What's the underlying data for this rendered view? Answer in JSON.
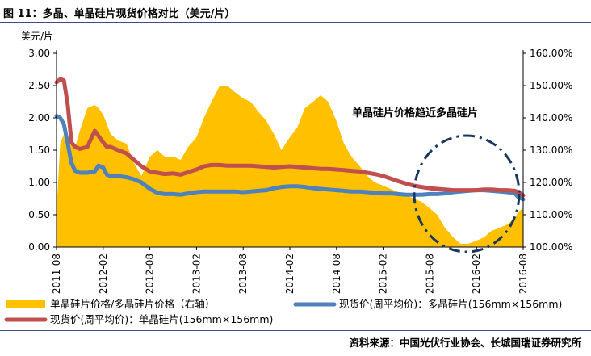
{
  "header": {
    "title": "图 11：多晶、单晶硅片现货价格对比（美元/片）",
    "unit_left": "美元/片",
    "source": "资料来源：中国光伏行业协会、长城国瑞证券研究所"
  },
  "annotation": "单晶硅片价格趋近多晶硅片",
  "colors": {
    "area": "#FFC000",
    "poly_line": "#4F81BD",
    "mono_line": "#C0504D",
    "ellipse": "#17375E",
    "rule": "#3A4A8A"
  },
  "chart_data": {
    "type": "line",
    "title": "图 11：多晶、单晶硅片现货价格对比（美元/片）",
    "ylabel": "美元/片",
    "x_ticks": [
      "2011-08",
      "2012-02",
      "2012-08",
      "2013-02",
      "2013-08",
      "2014-02",
      "2014-08",
      "2015-02",
      "2015-08",
      "2016-02",
      "2016-08"
    ],
    "y_left_ticks": [
      "3.00",
      "2.50",
      "2.00",
      "1.50",
      "1.00",
      "0.50",
      "0.00"
    ],
    "y_right_ticks": [
      "160.00%",
      "150.00%",
      "140.00%",
      "130.00%",
      "120.00%",
      "110.00%",
      "100.00%"
    ],
    "ylim_left": [
      0,
      3
    ],
    "ylim_right": [
      1.0,
      1.6
    ],
    "grid": false,
    "legend_position": "bottom",
    "x": [
      2011.67,
      2011.71,
      2011.75,
      2011.79,
      2011.83,
      2011.87,
      2011.92,
      2012.0,
      2012.08,
      2012.12,
      2012.17,
      2012.21,
      2012.25,
      2012.33,
      2012.42,
      2012.5,
      2012.58,
      2012.67,
      2012.75,
      2012.83,
      2012.92,
      2013.0,
      2013.08,
      2013.17,
      2013.25,
      2013.33,
      2013.42,
      2013.5,
      2013.58,
      2013.67,
      2013.75,
      2013.83,
      2013.92,
      2014.0,
      2014.08,
      2014.17,
      2014.25,
      2014.33,
      2014.42,
      2014.5,
      2014.58,
      2014.67,
      2014.75,
      2014.83,
      2014.92,
      2015.0,
      2015.08,
      2015.17,
      2015.25,
      2015.33,
      2015.42,
      2015.5,
      2015.58,
      2015.67,
      2015.75,
      2015.83,
      2015.92,
      2016.0,
      2016.08,
      2016.17,
      2016.25,
      2016.33,
      2016.42,
      2016.5,
      2016.58,
      2016.62,
      2016.67
    ],
    "series": [
      {
        "name": "单晶硅片价格/多晶硅片价格（右轴）",
        "axis": "right",
        "style": "area",
        "values": [
          1.11,
          1.32,
          1.35,
          1.33,
          1.32,
          1.31,
          1.36,
          1.43,
          1.44,
          1.43,
          1.41,
          1.38,
          1.35,
          1.33,
          1.32,
          1.26,
          1.22,
          1.28,
          1.3,
          1.28,
          1.28,
          1.27,
          1.31,
          1.34,
          1.4,
          1.45,
          1.5,
          1.5,
          1.48,
          1.46,
          1.45,
          1.42,
          1.39,
          1.35,
          1.3,
          1.34,
          1.37,
          1.43,
          1.45,
          1.47,
          1.45,
          1.39,
          1.32,
          1.28,
          1.25,
          1.22,
          1.2,
          1.19,
          1.18,
          1.17,
          1.16,
          1.15,
          1.14,
          1.12,
          1.1,
          1.06,
          1.03,
          1.01,
          1.01,
          1.02,
          1.03,
          1.05,
          1.06,
          1.07,
          1.09,
          1.11,
          1.12
        ]
      },
      {
        "name": "现货价(周平均价)：多晶硅片(156mm×156mm)",
        "axis": "left",
        "style": "line",
        "values": [
          2.03,
          2.0,
          1.9,
          1.6,
          1.3,
          1.18,
          1.15,
          1.15,
          1.17,
          1.26,
          1.23,
          1.12,
          1.1,
          1.1,
          1.08,
          1.05,
          1.0,
          0.9,
          0.84,
          0.82,
          0.82,
          0.81,
          0.83,
          0.85,
          0.86,
          0.86,
          0.86,
          0.86,
          0.86,
          0.85,
          0.86,
          0.87,
          0.88,
          0.91,
          0.93,
          0.94,
          0.94,
          0.93,
          0.91,
          0.9,
          0.89,
          0.88,
          0.87,
          0.86,
          0.86,
          0.85,
          0.84,
          0.83,
          0.83,
          0.82,
          0.81,
          0.81,
          0.81,
          0.82,
          0.82,
          0.83,
          0.85,
          0.86,
          0.87,
          0.88,
          0.88,
          0.87,
          0.86,
          0.85,
          0.83,
          0.77,
          0.74
        ]
      },
      {
        "name": "现货价(周平均价)：单晶硅片(156mm×156mm)",
        "axis": "left",
        "style": "line",
        "values": [
          2.55,
          2.6,
          2.58,
          2.2,
          1.62,
          1.55,
          1.52,
          1.55,
          1.8,
          1.72,
          1.62,
          1.55,
          1.55,
          1.5,
          1.45,
          1.35,
          1.25,
          1.17,
          1.15,
          1.13,
          1.14,
          1.12,
          1.16,
          1.2,
          1.25,
          1.27,
          1.27,
          1.26,
          1.26,
          1.26,
          1.26,
          1.25,
          1.24,
          1.23,
          1.24,
          1.25,
          1.24,
          1.23,
          1.22,
          1.21,
          1.21,
          1.2,
          1.19,
          1.18,
          1.17,
          1.15,
          1.13,
          1.1,
          1.06,
          1.02,
          0.98,
          0.95,
          0.93,
          0.91,
          0.9,
          0.89,
          0.88,
          0.88,
          0.88,
          0.88,
          0.89,
          0.89,
          0.88,
          0.88,
          0.87,
          0.85,
          0.8
        ]
      }
    ]
  }
}
